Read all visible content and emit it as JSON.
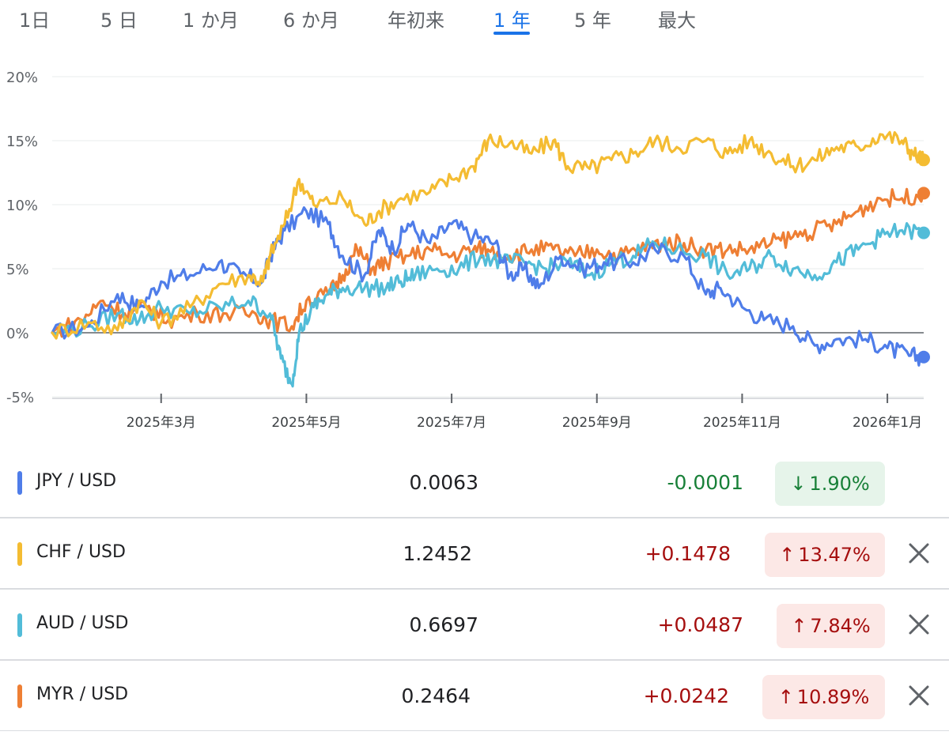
{
  "tabs": [
    {
      "label": "1日",
      "active": false
    },
    {
      "label": "5 日",
      "active": false
    },
    {
      "label": "1 か月",
      "active": false
    },
    {
      "label": "6 か月",
      "active": false
    },
    {
      "label": "年初来",
      "active": false
    },
    {
      "label": "1 年",
      "active": true
    },
    {
      "label": "5 年",
      "active": false
    },
    {
      "label": "最大",
      "active": false
    }
  ],
  "chart_data": {
    "type": "line",
    "y_ticks": [
      "20%",
      "15%",
      "10%",
      "5%",
      "0%",
      "-5%"
    ],
    "ylim": [
      -5,
      20
    ],
    "x_ticks": [
      "2025年3月",
      "2025年5月",
      "2025年7月",
      "2025年9月",
      "2025年11月",
      "2026年1月"
    ],
    "x_tick_positions": [
      1.5,
      3.5,
      5.5,
      7.5,
      9.5,
      11.5
    ],
    "xlim": [
      0,
      12.0
    ],
    "grid": true,
    "series": [
      {
        "name": "JPY / USD",
        "color": "#4f7de9",
        "points": [
          [
            0,
            0
          ],
          [
            0.5,
            0.5
          ],
          [
            0.9,
            3.0
          ],
          [
            1.2,
            2.0
          ],
          [
            1.5,
            4.0
          ],
          [
            1.9,
            4.5
          ],
          [
            2.3,
            5.5
          ],
          [
            2.6,
            4.5
          ],
          [
            2.9,
            4.0
          ],
          [
            3.0,
            6.0
          ],
          [
            3.2,
            8.0
          ],
          [
            3.5,
            9.5
          ],
          [
            3.8,
            8.5
          ],
          [
            4.0,
            6.0
          ],
          [
            4.3,
            4.5
          ],
          [
            4.5,
            8.0
          ],
          [
            4.7,
            6.5
          ],
          [
            4.9,
            8.5
          ],
          [
            5.2,
            7.0
          ],
          [
            5.5,
            8.5
          ],
          [
            5.8,
            7.5
          ],
          [
            6.1,
            7.0
          ],
          [
            6.3,
            4.5
          ],
          [
            6.5,
            5.0
          ],
          [
            6.7,
            3.5
          ],
          [
            7.0,
            6.0
          ],
          [
            7.3,
            5.0
          ],
          [
            7.6,
            5.5
          ],
          [
            8.0,
            5.5
          ],
          [
            8.3,
            6.5
          ],
          [
            8.7,
            6.0
          ],
          [
            9.0,
            3.0
          ],
          [
            9.2,
            3.5
          ],
          [
            9.5,
            2.0
          ],
          [
            9.8,
            1.0
          ],
          [
            10.2,
            0.5
          ],
          [
            10.5,
            -1.0
          ],
          [
            10.8,
            -0.5
          ],
          [
            11.2,
            -0.5
          ],
          [
            11.5,
            -1.2
          ],
          [
            11.8,
            -1.8
          ],
          [
            12.0,
            -1.9
          ]
        ]
      },
      {
        "name": "CHF / USD",
        "color": "#f4bc32",
        "points": [
          [
            0,
            0
          ],
          [
            0.5,
            0.8
          ],
          [
            0.9,
            0.2
          ],
          [
            1.2,
            2.5
          ],
          [
            1.5,
            0.8
          ],
          [
            1.9,
            2.0
          ],
          [
            2.3,
            3.8
          ],
          [
            2.7,
            4.5
          ],
          [
            2.9,
            4.0
          ],
          [
            3.0,
            6.0
          ],
          [
            3.2,
            8.5
          ],
          [
            3.4,
            12.0
          ],
          [
            3.6,
            10.0
          ],
          [
            4.0,
            10.5
          ],
          [
            4.3,
            8.5
          ],
          [
            4.5,
            9.5
          ],
          [
            4.8,
            10.5
          ],
          [
            5.2,
            11.0
          ],
          [
            5.5,
            12.0
          ],
          [
            5.8,
            13.0
          ],
          [
            6.0,
            15.0
          ],
          [
            6.3,
            14.8
          ],
          [
            6.6,
            14.0
          ],
          [
            6.9,
            15.0
          ],
          [
            7.1,
            13.0
          ],
          [
            7.4,
            12.8
          ],
          [
            7.7,
            13.5
          ],
          [
            8.0,
            14.0
          ],
          [
            8.3,
            15.0
          ],
          [
            8.6,
            14.5
          ],
          [
            9.0,
            15.0
          ],
          [
            9.3,
            14.0
          ],
          [
            9.6,
            15.0
          ],
          [
            9.9,
            14.0
          ],
          [
            10.2,
            13.0
          ],
          [
            10.5,
            13.5
          ],
          [
            10.8,
            14.5
          ],
          [
            11.1,
            14.5
          ],
          [
            11.4,
            15.5
          ],
          [
            11.7,
            15.0
          ],
          [
            11.85,
            14.0
          ],
          [
            12.0,
            13.5
          ]
        ]
      },
      {
        "name": "AUD / USD",
        "color": "#52bcd8",
        "points": [
          [
            0,
            0
          ],
          [
            0.5,
            0.5
          ],
          [
            0.9,
            1.5
          ],
          [
            1.2,
            1.0
          ],
          [
            1.5,
            2.0
          ],
          [
            1.9,
            1.5
          ],
          [
            2.3,
            2.0
          ],
          [
            2.7,
            2.5
          ],
          [
            3.0,
            1.5
          ],
          [
            3.15,
            -2.0
          ],
          [
            3.3,
            -4.0
          ],
          [
            3.4,
            0
          ],
          [
            3.6,
            2.0
          ],
          [
            3.8,
            3.0
          ],
          [
            4.0,
            3.5
          ],
          [
            4.3,
            3.5
          ],
          [
            4.6,
            3.5
          ],
          [
            4.8,
            4.0
          ],
          [
            5.0,
            4.5
          ],
          [
            5.3,
            5.0
          ],
          [
            5.6,
            5.0
          ],
          [
            5.9,
            6.0
          ],
          [
            6.2,
            5.5
          ],
          [
            6.5,
            5.5
          ],
          [
            6.8,
            5.0
          ],
          [
            7.1,
            5.5
          ],
          [
            7.4,
            4.5
          ],
          [
            7.7,
            5.5
          ],
          [
            8.0,
            6.0
          ],
          [
            8.3,
            7.0
          ],
          [
            8.6,
            6.5
          ],
          [
            9.0,
            6.0
          ],
          [
            9.3,
            4.5
          ],
          [
            9.6,
            5.0
          ],
          [
            9.9,
            6.0
          ],
          [
            10.2,
            5.0
          ],
          [
            10.5,
            4.5
          ],
          [
            10.8,
            5.5
          ],
          [
            11.1,
            6.5
          ],
          [
            11.4,
            7.5
          ],
          [
            11.7,
            8.0
          ],
          [
            12.0,
            7.8
          ]
        ]
      },
      {
        "name": "MYR / USD",
        "color": "#ee7f34",
        "points": [
          [
            0,
            0
          ],
          [
            0.4,
            1.0
          ],
          [
            0.7,
            2.5
          ],
          [
            1.0,
            1.5
          ],
          [
            1.3,
            2.0
          ],
          [
            1.6,
            1.0
          ],
          [
            2.0,
            1.5
          ],
          [
            2.4,
            1.5
          ],
          [
            2.8,
            1.5
          ],
          [
            3.0,
            1.0
          ],
          [
            3.3,
            0.5
          ],
          [
            3.5,
            2.5
          ],
          [
            3.8,
            3.0
          ],
          [
            4.0,
            4.5
          ],
          [
            4.2,
            6.5
          ],
          [
            4.4,
            5.0
          ],
          [
            4.6,
            5.5
          ],
          [
            4.9,
            6.0
          ],
          [
            5.2,
            6.5
          ],
          [
            5.5,
            6.0
          ],
          [
            5.8,
            6.5
          ],
          [
            6.0,
            6.5
          ],
          [
            6.3,
            6.0
          ],
          [
            6.6,
            6.5
          ],
          [
            6.9,
            6.5
          ],
          [
            7.2,
            6.0
          ],
          [
            7.5,
            6.5
          ],
          [
            7.8,
            6.0
          ],
          [
            8.1,
            6.5
          ],
          [
            8.4,
            7.0
          ],
          [
            8.7,
            7.0
          ],
          [
            9.0,
            6.5
          ],
          [
            9.3,
            6.5
          ],
          [
            9.6,
            6.5
          ],
          [
            9.9,
            7.0
          ],
          [
            10.2,
            7.5
          ],
          [
            10.5,
            8.0
          ],
          [
            10.8,
            8.5
          ],
          [
            11.1,
            9.5
          ],
          [
            11.4,
            10.5
          ],
          [
            11.7,
            10.5
          ],
          [
            12.0,
            10.9
          ]
        ]
      }
    ]
  },
  "rows": [
    {
      "pair": "JPY / USD",
      "color": "#4f7de9",
      "price": "0.0063",
      "change": "-0.0001",
      "change_color": "#188038",
      "arrow": "↓",
      "pct": "1.90%",
      "pill_bg": "#e6f4ea",
      "pill_fg": "#188038",
      "closable": false
    },
    {
      "pair": "CHF / USD",
      "color": "#f4bc32",
      "price": "1.2452",
      "change": "+0.1478",
      "change_color": "#a50e0e",
      "arrow": "↑",
      "pct": "13.47%",
      "pill_bg": "#fce8e6",
      "pill_fg": "#a50e0e",
      "closable": true
    },
    {
      "pair": "AUD / USD",
      "color": "#52bcd8",
      "price": "0.6697",
      "change": "+0.0487",
      "change_color": "#a50e0e",
      "arrow": "↑",
      "pct": "7.84%",
      "pill_bg": "#fce8e6",
      "pill_fg": "#a50e0e",
      "closable": true
    },
    {
      "pair": "MYR / USD",
      "color": "#ee7f34",
      "price": "0.2464",
      "change": "+0.0242",
      "change_color": "#a50e0e",
      "arrow": "↑",
      "pct": "10.89%",
      "pill_bg": "#fce8e6",
      "pill_fg": "#a50e0e",
      "closable": true
    }
  ],
  "icons": {
    "close": "close-icon"
  }
}
